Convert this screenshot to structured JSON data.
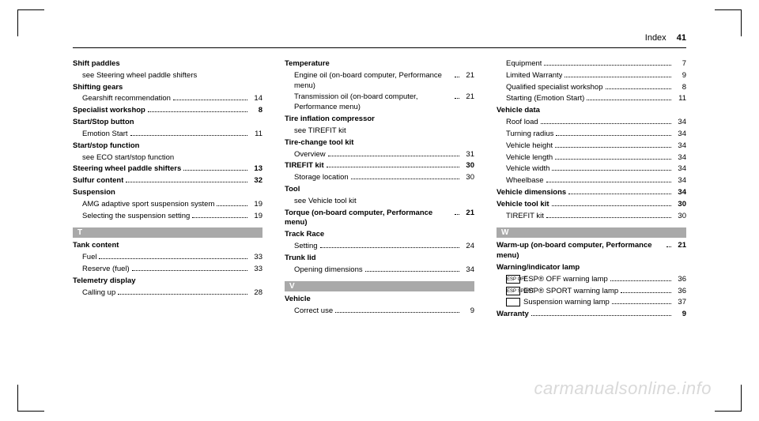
{
  "header": {
    "title": "Index",
    "page": "41"
  },
  "watermark": "carmanualsonline.info",
  "letters": {
    "T": "T",
    "V": "V",
    "W": "W"
  },
  "col1": [
    {
      "t": "bold",
      "text": "Shift paddles"
    },
    {
      "t": "sub",
      "text": "see Steering wheel paddle shifters"
    },
    {
      "t": "bold",
      "text": "Shifting gears"
    },
    {
      "t": "subrow",
      "text": "Gearshift recommendation",
      "pg": "14"
    },
    {
      "t": "boldrow",
      "text": "Specialist workshop",
      "pg": "8"
    },
    {
      "t": "bold",
      "text": "Start/Stop button"
    },
    {
      "t": "subrow",
      "text": "Emotion Start",
      "pg": "11"
    },
    {
      "t": "bold",
      "text": "Start/stop function"
    },
    {
      "t": "sub",
      "text": "see ECO start/stop function"
    },
    {
      "t": "boldrow",
      "text": "Steering wheel paddle shifters",
      "pg": "13"
    },
    {
      "t": "boldrow",
      "text": "Sulfur content",
      "pg": "32"
    },
    {
      "t": "bold",
      "text": "Suspension"
    },
    {
      "t": "subrow",
      "text": "AMG adaptive sport suspension system",
      "pg": "19"
    },
    {
      "t": "subrow",
      "text": "Selecting the suspension setting",
      "pg": "19"
    },
    {
      "t": "letter",
      "text": "T"
    },
    {
      "t": "bold",
      "text": "Tank content"
    },
    {
      "t": "subrow",
      "text": "Fuel",
      "pg": "33"
    },
    {
      "t": "subrow",
      "text": "Reserve (fuel)",
      "pg": "33"
    },
    {
      "t": "bold",
      "text": "Telemetry display"
    },
    {
      "t": "subrow",
      "text": "Calling up",
      "pg": "28"
    }
  ],
  "col2": [
    {
      "t": "bold",
      "text": "Temperature"
    },
    {
      "t": "subrow",
      "text": "Engine oil (on-board computer, Performance menu)",
      "pg": "21"
    },
    {
      "t": "subrow",
      "text": "Transmission oil (on-board computer, Performance menu)",
      "pg": "21"
    },
    {
      "t": "bold",
      "text": "Tire inflation compressor"
    },
    {
      "t": "sub",
      "text": "see TIREFIT kit"
    },
    {
      "t": "bold",
      "text": "Tire-change tool kit"
    },
    {
      "t": "subrow",
      "text": "Overview",
      "pg": "31"
    },
    {
      "t": "boldrow",
      "text": "TIREFIT kit",
      "pg": "30"
    },
    {
      "t": "subrow",
      "text": "Storage location",
      "pg": "30"
    },
    {
      "t": "bold",
      "text": "Tool"
    },
    {
      "t": "sub",
      "text": "see Vehicle tool kit"
    },
    {
      "t": "boldrow",
      "text": "Torque (on-board computer, Performance menu)",
      "pg": "21"
    },
    {
      "t": "bold",
      "text": "Track Race"
    },
    {
      "t": "subrow",
      "text": "Setting",
      "pg": "24"
    },
    {
      "t": "bold",
      "text": "Trunk lid"
    },
    {
      "t": "subrow",
      "text": "Opening dimensions",
      "pg": "34"
    },
    {
      "t": "letter",
      "text": "V"
    },
    {
      "t": "bold",
      "text": "Vehicle"
    },
    {
      "t": "subrow",
      "text": "Correct use",
      "pg": "9"
    }
  ],
  "col3": [
    {
      "t": "subrow",
      "text": "Equipment",
      "pg": "7"
    },
    {
      "t": "subrow",
      "text": "Limited Warranty",
      "pg": "9"
    },
    {
      "t": "subrow",
      "text": "Qualified specialist workshop",
      "pg": "8"
    },
    {
      "t": "subrow",
      "text": "Starting (Emotion Start)",
      "pg": "11"
    },
    {
      "t": "bold",
      "text": "Vehicle data"
    },
    {
      "t": "subrow",
      "text": "Roof load",
      "pg": "34"
    },
    {
      "t": "subrow",
      "text": "Turning radius",
      "pg": "34"
    },
    {
      "t": "subrow",
      "text": "Vehicle height",
      "pg": "34"
    },
    {
      "t": "subrow",
      "text": "Vehicle length",
      "pg": "34"
    },
    {
      "t": "subrow",
      "text": "Vehicle width",
      "pg": "34"
    },
    {
      "t": "subrow",
      "text": "Wheelbase",
      "pg": "34"
    },
    {
      "t": "boldrow",
      "text": "Vehicle dimensions",
      "pg": "34"
    },
    {
      "t": "boldrow",
      "text": "Vehicle tool kit",
      "pg": "30"
    },
    {
      "t": "subrow",
      "text": "TIREFIT kit",
      "pg": "30"
    },
    {
      "t": "letter",
      "text": "W"
    },
    {
      "t": "boldrow",
      "text": "Warm-up (on-board computer, Performance menu)",
      "pg": "21"
    },
    {
      "t": "bold",
      "text": "Warning/indicator lamp"
    },
    {
      "t": "iconrow",
      "icon": "ESP OFF",
      "text": "ESP® OFF warning lamp",
      "pg": "36"
    },
    {
      "t": "iconrow",
      "icon": "ESP SPORT",
      "text": "ESP® SPORT warning lamp",
      "pg": "36"
    },
    {
      "t": "iconrow",
      "icon": "",
      "text": "Suspension warning lamp",
      "pg": "37"
    },
    {
      "t": "boldrow",
      "text": "Warranty",
      "pg": "9"
    }
  ]
}
